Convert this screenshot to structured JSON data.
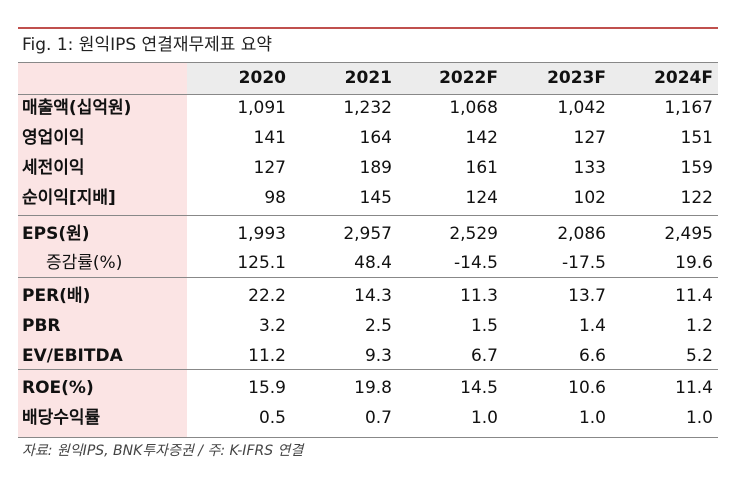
{
  "header": {
    "title": "Fig. 1: 원익IPS 연결재무제표 요약"
  },
  "table": {
    "columns": [
      "2020",
      "2021",
      "2022F",
      "2023F",
      "2024F"
    ],
    "rows": [
      [
        "매출액(십억원)",
        "1,091",
        "1,232",
        "1,068",
        "1,042",
        "1,167"
      ],
      [
        "영업이익",
        "141",
        "164",
        "142",
        "127",
        "151"
      ],
      [
        "세전이익",
        "127",
        "189",
        "161",
        "133",
        "159"
      ],
      [
        "순이익[지배]",
        "98",
        "145",
        "124",
        "102",
        "122"
      ],
      [
        "EPS(원)",
        "1,993",
        "2,957",
        "2,529",
        "2,086",
        "2,495"
      ],
      [
        "증감률(%)",
        "125.1",
        "48.4",
        "-14.5",
        "-17.5",
        "19.6"
      ],
      [
        "PER(배)",
        "22.2",
        "14.3",
        "11.3",
        "13.7",
        "11.4"
      ],
      [
        "PBR",
        "3.2",
        "2.5",
        "1.5",
        "1.4",
        "1.2"
      ],
      [
        "EV/EBITDA",
        "11.2",
        "9.3",
        "6.7",
        "6.6",
        "5.2"
      ],
      [
        "ROE(%)",
        "15.9",
        "19.8",
        "14.5",
        "10.6",
        "11.4"
      ],
      [
        "배당수익률",
        "0.5",
        "0.7",
        "1.0",
        "1.0",
        "1.0"
      ]
    ]
  },
  "footer": {
    "source": "자료: 원익IPS, BNK투자증권 / 주: K-IFRS 연결"
  }
}
